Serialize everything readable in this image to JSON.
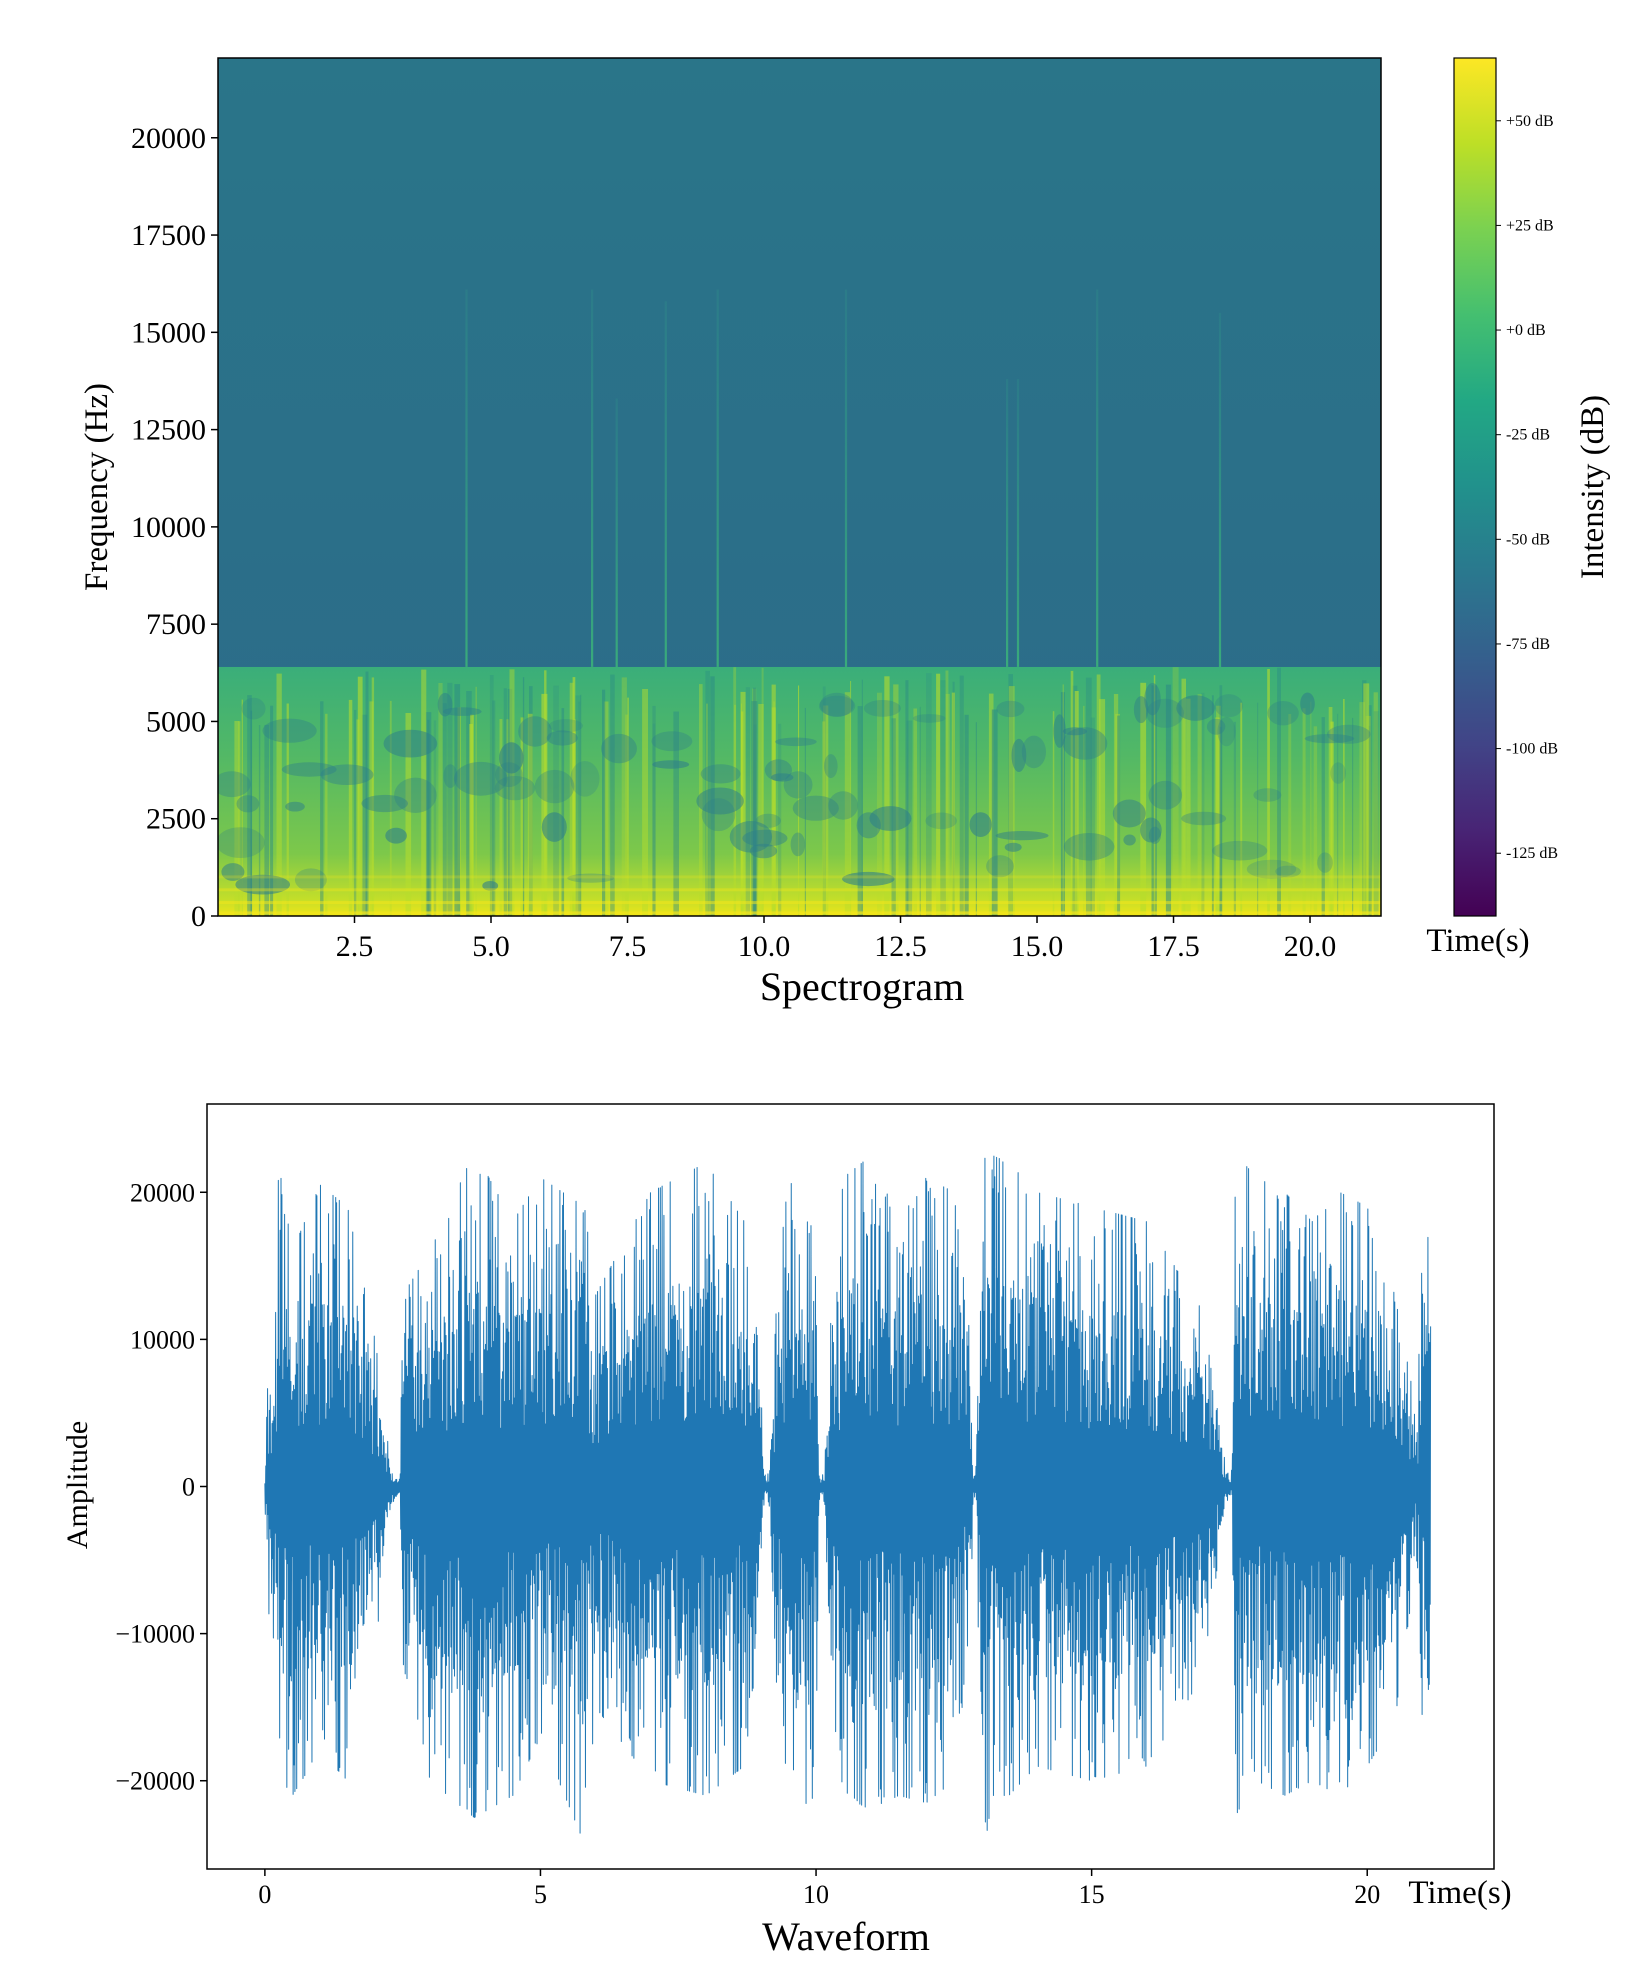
{
  "chart_data": [
    {
      "type": "heatmap",
      "caption": "Spectrogram",
      "ylabel": "Frequency (Hz)",
      "xlabel": "Time(s)",
      "xlim": [
        0.0,
        21.3
      ],
      "ylim": [
        0,
        22050
      ],
      "x_ticks": [
        2.5,
        5.0,
        7.5,
        10.0,
        12.5,
        15.0,
        17.5,
        20.0
      ],
      "x_tick_labels": [
        "2.5",
        "5.0",
        "7.5",
        "10.0",
        "12.5",
        "15.0",
        "17.5",
        "20.0"
      ],
      "y_ticks": [
        0,
        2500,
        5000,
        7500,
        10000,
        12500,
        15000,
        17500,
        20000
      ],
      "y_tick_labels": [
        "0",
        "2500",
        "5000",
        "7500",
        "10000",
        "12500",
        "15000",
        "17500",
        "20000"
      ],
      "energy_cutoff_hz": 6400,
      "background_level_db": -55,
      "transients": [
        {
          "t": 4.55,
          "top_hz": 16100
        },
        {
          "t": 6.85,
          "top_hz": 16100
        },
        {
          "t": 7.3,
          "top_hz": 13300
        },
        {
          "t": 8.2,
          "top_hz": 15800
        },
        {
          "t": 9.15,
          "top_hz": 16100
        },
        {
          "t": 11.5,
          "top_hz": 16100
        },
        {
          "t": 14.45,
          "top_hz": 13800
        },
        {
          "t": 14.65,
          "top_hz": 13800
        },
        {
          "t": 16.1,
          "top_hz": 16100
        },
        {
          "t": 18.35,
          "top_hz": 15500
        }
      ],
      "colorbar": {
        "label": "Intensity (dB)",
        "colormap": "viridis",
        "range_db": [
          -140,
          65
        ],
        "ticks": [
          50,
          25,
          0,
          -25,
          -50,
          -75,
          -100,
          -125
        ],
        "tick_labels": [
          "+50 dB",
          "+25 dB",
          "+0 dB",
          "-25 dB",
          "-50 dB",
          "-75 dB",
          "-100 dB",
          "-125 dB"
        ]
      }
    },
    {
      "type": "line",
      "caption": "Waveform",
      "ylabel": "Amplitude",
      "xlabel": "Time(s)",
      "xlim": [
        -1.05,
        22.3
      ],
      "ylim": [
        -26000,
        26000
      ],
      "x_ticks": [
        0,
        5,
        10,
        15,
        20
      ],
      "x_tick_labels": [
        "0",
        "5",
        "10",
        "15",
        "20"
      ],
      "y_ticks": [
        -20000,
        -10000,
        0,
        10000,
        20000
      ],
      "y_tick_labels": [
        "−20000",
        "−10000",
        "0",
        "10000",
        "20000"
      ],
      "duration_s": 21.15,
      "color": "#1f77b4",
      "envelope": {
        "t": [
          0.0,
          0.05,
          0.2,
          0.25,
          0.5,
          1.0,
          1.5,
          2.0,
          2.3,
          2.35,
          2.45,
          2.5,
          3.0,
          3.8,
          4.5,
          5.0,
          5.8,
          6.0,
          7.0,
          8.0,
          8.7,
          9.0,
          9.05,
          9.1,
          9.15,
          9.3,
          9.5,
          10.0,
          10.05,
          10.1,
          10.15,
          10.3,
          10.5,
          11.0,
          11.5,
          12.0,
          12.5,
          12.8,
          12.85,
          12.9,
          13.0,
          13.1,
          13.2,
          13.5,
          14.0,
          15.0,
          16.0,
          17.0,
          17.3,
          17.45,
          17.5,
          17.55,
          17.6,
          17.8,
          18.0,
          18.5,
          19.0,
          19.5,
          20.0,
          20.5,
          20.9,
          21.0,
          21.15
        ],
        "max": [
          800,
          6800,
          12000,
          22000,
          16000,
          20500,
          19000,
          10000,
          1500,
          800,
          1000,
          13000,
          16000,
          22800,
          18000,
          21000,
          19000,
          13000,
          20000,
          22000,
          18000,
          8000,
          1500,
          900,
          1200,
          14000,
          21000,
          17000,
          1200,
          800,
          1200,
          14000,
          21000,
          22500,
          18000,
          21000,
          20000,
          10000,
          1000,
          1200,
          22000,
          23000,
          22500,
          22000,
          20000,
          19000,
          18000,
          12000,
          5000,
          1000,
          800,
          1200,
          22000,
          21800,
          21000,
          20000,
          18000,
          20000,
          19000,
          13000,
          5000,
          16800,
          17000
        ],
        "min": [
          -800,
          -7500,
          -15000,
          -20000,
          -21000,
          -18000,
          -20000,
          -11000,
          -1500,
          -800,
          -1000,
          -12000,
          -20000,
          -22500,
          -21000,
          -17000,
          -24300,
          -15000,
          -20000,
          -21000,
          -19000,
          -9000,
          -1500,
          -900,
          -1200,
          -15000,
          -22500,
          -21000,
          -1200,
          -800,
          -1200,
          -15000,
          -21000,
          -22000,
          -21000,
          -21500,
          -20000,
          -10000,
          -1000,
          -1200,
          -21000,
          -23500,
          -21000,
          -21000,
          -19000,
          -20000,
          -19000,
          -13000,
          -5000,
          -1000,
          -800,
          -1200,
          -22500,
          -21000,
          -20000,
          -21000,
          -20000,
          -21000,
          -19000,
          -16000,
          -5000,
          -16000,
          -16200
        ]
      }
    }
  ]
}
